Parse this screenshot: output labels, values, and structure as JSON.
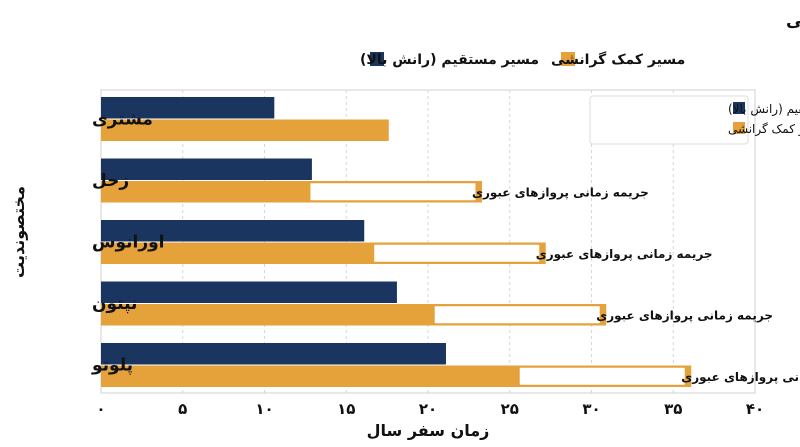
{
  "chart_data": {
    "type": "bar",
    "orientation": "horizontal",
    "title": "مقایسه زمان سفر ماموریت‌های منظومه شمسی بیرونی: مسیر مستقیم در مقابل کمک گرانشی",
    "xlabel": "زمان سفر سال",
    "ylabel": "مختصوندیت",
    "categories": [
      "مشتری",
      "زحل",
      "اورانوس",
      "نپتون",
      "پلوتو"
    ],
    "xlim": [
      0,
      40
    ],
    "xticks": [
      0,
      5,
      10,
      15,
      20,
      25,
      30,
      35,
      40
    ],
    "xtick_labels": [
      "۰",
      "۵",
      "۱۰",
      "۱۵",
      "۲۰",
      "۲۵",
      "۳۰",
      "۳۵",
      "۴۰"
    ],
    "grid": true,
    "series": [
      {
        "name": "مسیر مستقیم (رانش بالا)",
        "color": "#1b3561",
        "values": [
          10.6,
          12.9,
          16.1,
          18.1,
          21.1
        ]
      },
      {
        "name": "مسیر کمک گرانشی",
        "color": "#e6a23a",
        "values": [
          17.6,
          23.3,
          27.2,
          30.9,
          36.1
        ]
      }
    ],
    "bar_annotations": [
      "",
      "جریمه زمانی پروازهای عبوری",
      "جریمه زمانی پروازهای عبوری",
      "جریمه زمانی پروازهای عبوری",
      "جریمه زمانی پروازهای عبوری"
    ],
    "legend_top": true,
    "legend_inside": "top-right"
  }
}
